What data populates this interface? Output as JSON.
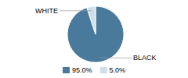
{
  "chart_data": {
    "type": "pie",
    "categories": [
      "BLACK",
      "WHITE"
    ],
    "values": [
      95.0,
      5.0
    ],
    "value_labels": [
      "95.0%",
      "5.0%"
    ],
    "colors": [
      "#4a7a9b",
      "#cfdfe8"
    ],
    "legend": "bottom"
  }
}
